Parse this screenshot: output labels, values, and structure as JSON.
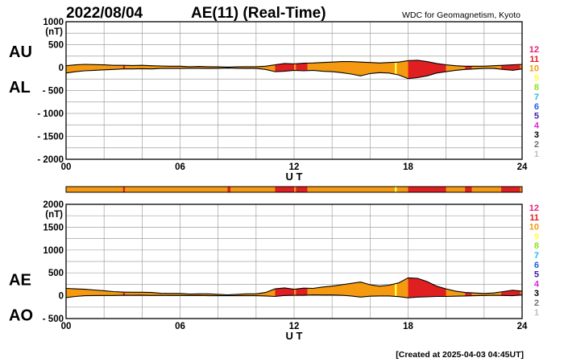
{
  "header": {
    "date": "2022/08/04",
    "title": "AE(11) (Real-Time)",
    "source": "WDC for Geomagnetism, Kyoto"
  },
  "footer": {
    "created": "[Created at 2025-04-03 04:45UT]"
  },
  "level_colors": {
    "12": "#e8207a",
    "11": "#e02020",
    "10": "#f59a10",
    "9": "#ffff40",
    "8": "#90e020",
    "7": "#20c0e0",
    "6": "#2060e0",
    "5": "#4020a0",
    "4": "#e020e0",
    "3": "#000000",
    "2": "#707070",
    "1": "#c0c0c0"
  },
  "legend_levels": [
    "12",
    "11",
    "10",
    "9",
    "8",
    "7",
    "6",
    "5",
    "4",
    "3",
    "2",
    "1"
  ],
  "station_strip": [
    {
      "from": 0,
      "to": 3.0,
      "level": "10"
    },
    {
      "from": 3.0,
      "to": 3.1,
      "level": "11"
    },
    {
      "from": 3.1,
      "to": 8.5,
      "level": "10"
    },
    {
      "from": 8.5,
      "to": 8.65,
      "level": "11"
    },
    {
      "from": 8.65,
      "to": 11.0,
      "level": "10"
    },
    {
      "from": 11.0,
      "to": 12.0,
      "level": "11"
    },
    {
      "from": 12.0,
      "to": 12.1,
      "level": "10"
    },
    {
      "from": 12.1,
      "to": 12.7,
      "level": "11"
    },
    {
      "from": 12.7,
      "to": 17.3,
      "level": "10"
    },
    {
      "from": 17.3,
      "to": 17.4,
      "level": "9"
    },
    {
      "from": 17.4,
      "to": 18.0,
      "level": "10"
    },
    {
      "from": 18.0,
      "to": 20.0,
      "level": "11"
    },
    {
      "from": 20.0,
      "to": 21.0,
      "level": "10"
    },
    {
      "from": 21.0,
      "to": 21.35,
      "level": "11"
    },
    {
      "from": 21.35,
      "to": 22.9,
      "level": "10"
    },
    {
      "from": 22.9,
      "to": 23.9,
      "level": "11"
    },
    {
      "from": 23.9,
      "to": 24.0,
      "level": "10"
    }
  ],
  "chart_data": [
    {
      "type": "area",
      "series": [
        {
          "name": "AU",
          "x": [
            0,
            0.5,
            1,
            1.5,
            2,
            2.5,
            3,
            3.5,
            4,
            4.5,
            5,
            5.5,
            6,
            6.5,
            7,
            7.5,
            8,
            8.5,
            9,
            9.5,
            10,
            10.5,
            11,
            11.5,
            12,
            12.5,
            13,
            13.5,
            14,
            14.5,
            15,
            15.5,
            16,
            16.5,
            17,
            17.5,
            18,
            18.5,
            19,
            19.5,
            20,
            20.5,
            21,
            21.5,
            22,
            22.5,
            23,
            23.5,
            24
          ],
          "values": [
            40,
            60,
            70,
            65,
            60,
            50,
            50,
            45,
            50,
            40,
            35,
            30,
            30,
            20,
            25,
            20,
            15,
            10,
            15,
            20,
            20,
            30,
            60,
            90,
            80,
            95,
            100,
            110,
            120,
            130,
            130,
            120,
            110,
            100,
            110,
            120,
            150,
            160,
            130,
            90,
            60,
            40,
            30,
            30,
            30,
            40,
            50,
            60,
            70
          ]
        },
        {
          "name": "AL",
          "x": [
            0,
            0.5,
            1,
            1.5,
            2,
            2.5,
            3,
            3.5,
            4,
            4.5,
            5,
            5.5,
            6,
            6.5,
            7,
            7.5,
            8,
            8.5,
            9,
            9.5,
            10,
            10.5,
            11,
            11.5,
            12,
            12.5,
            13,
            13.5,
            14,
            14.5,
            15,
            15.5,
            16,
            16.5,
            17,
            17.5,
            18,
            18.5,
            19,
            19.5,
            20,
            20.5,
            21,
            21.5,
            22,
            22.5,
            23,
            23.5,
            24
          ],
          "values": [
            -120,
            -90,
            -70,
            -60,
            -50,
            -40,
            -30,
            -30,
            -25,
            -30,
            -20,
            -20,
            -20,
            -15,
            -15,
            -20,
            -15,
            -10,
            -15,
            -20,
            -20,
            -40,
            -90,
            -80,
            -60,
            -70,
            -60,
            -80,
            -90,
            -110,
            -140,
            -180,
            -130,
            -110,
            -120,
            -160,
            -240,
            -220,
            -180,
            -120,
            -90,
            -60,
            -40,
            -30,
            -20,
            -20,
            -40,
            -60,
            -30
          ]
        }
      ],
      "xlabel": "U T",
      "xlim": [
        0,
        24
      ],
      "xticks": [
        "00",
        "06",
        "12",
        "18",
        "24"
      ],
      "ylim": [
        -2000,
        1000
      ],
      "yticks": [
        -2000,
        -1500,
        -1000,
        -500,
        0,
        500,
        1000
      ],
      "y_unit": "(nT)",
      "left_labels": [
        "AU",
        "AL"
      ],
      "grid": true
    },
    {
      "type": "area",
      "series": [
        {
          "name": "AE",
          "x": [
            0,
            0.5,
            1,
            1.5,
            2,
            2.5,
            3,
            3.5,
            4,
            4.5,
            5,
            5.5,
            6,
            6.5,
            7,
            7.5,
            8,
            8.5,
            9,
            9.5,
            10,
            10.5,
            11,
            11.5,
            12,
            12.5,
            13,
            13.5,
            14,
            14.5,
            15,
            15.5,
            16,
            16.5,
            17,
            17.5,
            18,
            18.5,
            19,
            19.5,
            20,
            20.5,
            21,
            21.5,
            22,
            22.5,
            23,
            23.5,
            24
          ],
          "values": [
            160,
            150,
            140,
            125,
            110,
            90,
            80,
            75,
            75,
            70,
            55,
            50,
            50,
            35,
            40,
            40,
            30,
            20,
            30,
            40,
            40,
            70,
            150,
            170,
            140,
            165,
            160,
            190,
            210,
            240,
            270,
            300,
            240,
            210,
            230,
            280,
            390,
            380,
            310,
            210,
            150,
            100,
            70,
            60,
            50,
            60,
            90,
            120,
            100
          ]
        },
        {
          "name": "AO",
          "x": [
            0,
            0.5,
            1,
            1.5,
            2,
            2.5,
            3,
            3.5,
            4,
            4.5,
            5,
            5.5,
            6,
            6.5,
            7,
            7.5,
            8,
            8.5,
            9,
            9.5,
            10,
            10.5,
            11,
            11.5,
            12,
            12.5,
            13,
            13.5,
            14,
            14.5,
            15,
            15.5,
            16,
            16.5,
            17,
            17.5,
            18,
            18.5,
            19,
            19.5,
            20,
            20.5,
            21,
            21.5,
            22,
            22.5,
            23,
            23.5,
            24
          ],
          "values": [
            -40,
            -15,
            0,
            3,
            5,
            5,
            10,
            8,
            13,
            5,
            8,
            5,
            5,
            3,
            5,
            0,
            0,
            0,
            0,
            0,
            0,
            -5,
            -15,
            5,
            10,
            13,
            20,
            15,
            15,
            10,
            -5,
            -30,
            -10,
            -5,
            -5,
            -20,
            -45,
            -30,
            -25,
            -15,
            -15,
            -10,
            -5,
            0,
            5,
            10,
            5,
            0,
            20
          ]
        }
      ],
      "xlabel": "U T",
      "xlim": [
        0,
        24
      ],
      "xticks": [
        "00",
        "06",
        "12",
        "18",
        "24"
      ],
      "ylim": [
        -500,
        2000
      ],
      "yticks": [
        -500,
        0,
        500,
        1000,
        1500,
        2000
      ],
      "y_unit": "(nT)",
      "left_labels": [
        "AE",
        "AO"
      ],
      "grid": true
    }
  ]
}
